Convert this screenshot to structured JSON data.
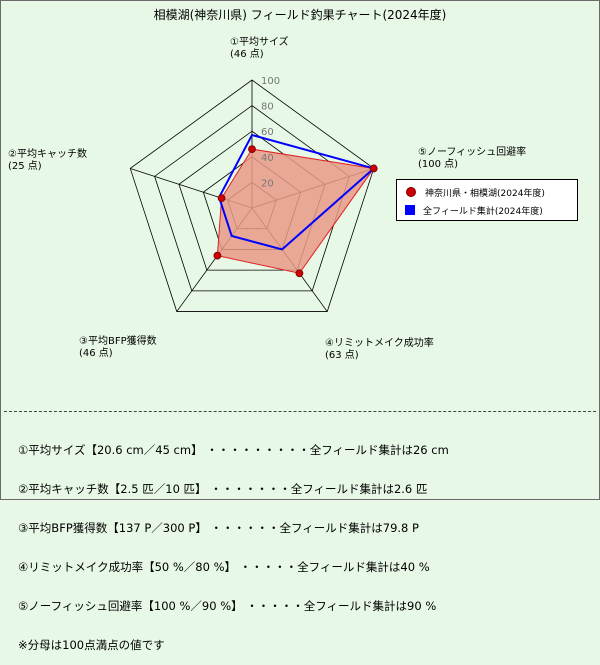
{
  "title": "相模湖(神奈川県) フィールド釣果チャート(2024年度)",
  "chart_data": {
    "type": "radar",
    "r_range": [
      0,
      100
    ],
    "ticks": [
      20,
      40,
      60,
      80,
      100
    ],
    "grid": true,
    "axes": [
      {
        "name": "①平均サイズ",
        "score": "(46 点)"
      },
      {
        "name": "⑤ノーフィッシュ回避率",
        "score": "(100 点)"
      },
      {
        "name": "④リミットメイク成功率",
        "score": "(63 点)"
      },
      {
        "name": "③平均BFP獲得数",
        "score": "(46 点)"
      },
      {
        "name": "②平均キャッチ数",
        "score": "(25 点)"
      }
    ],
    "series": [
      {
        "name": "神奈川県・相模湖(2024年度)",
        "values": [
          46,
          100,
          63,
          46,
          25
        ]
      },
      {
        "name": "全フィールド集計(2024年度)",
        "values": [
          57,
          100,
          40,
          27,
          27
        ]
      }
    ],
    "legend_position": "right"
  },
  "colors": {
    "series1_fill": "#e89a86",
    "series1_line": "#dd2222",
    "series1_point": "#cc0000",
    "series2_line": "#0000ff",
    "grid": "#000000",
    "background": "#e7f8e6"
  },
  "notes": [
    "①平均サイズ【20.6 cm／45 cm】 ・・・・・・・・・全フィールド集計は26 cm",
    "②平均キャッチ数【2.5 匹／10 匹】 ・・・・・・・全フィールド集計は2.6 匹",
    "③平均BFP獲得数【137 P／300 P】 ・・・・・・全フィールド集計は79.8 P",
    "④リミットメイク成功率【50 %／80 %】 ・・・・・全フィールド集計は40 %",
    "⑤ノーフィッシュ回避率【100 %／90 %】 ・・・・・全フィールド集計は90 %",
    "※分母は100点満点の値です"
  ]
}
